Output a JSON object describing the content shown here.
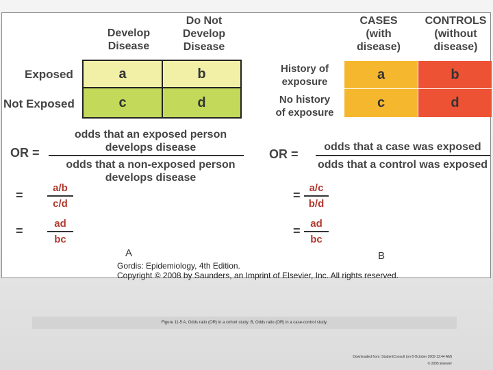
{
  "panel_a": {
    "col1": "Develop\nDisease",
    "col2": "Do Not\nDevelop\nDisease",
    "row1": "Exposed",
    "row2": "Not Exposed",
    "cells": [
      "a",
      "b",
      "c",
      "d"
    ],
    "or_label": "OR  =",
    "numerator": "odds that an exposed person\ndevelops disease",
    "denominator": "odds that a non-exposed person\ndevelops disease",
    "eq_sign_1": "=",
    "frac1_num": "a/b",
    "frac1_den": "c/d",
    "eq_sign_2": "=",
    "frac2_num": "ad",
    "frac2_den": "bc",
    "letter": "A"
  },
  "panel_b": {
    "col1": "CASES\n(with\ndisease)",
    "col2": "CONTROLS\n(without\ndisease)",
    "row1": "History of\nexposure",
    "row2": "No history\nof exposure",
    "cells": [
      "a",
      "b",
      "c",
      "d"
    ],
    "or_label": "OR  =",
    "numerator": "odds that a case was exposed",
    "denominator": "odds that a control was exposed",
    "eq_sign_1": "=",
    "frac1_num": "a/c",
    "frac1_den": "b/d",
    "eq_sign_2": "=",
    "frac2_num": "ad",
    "frac2_den": "bc",
    "letter": "B"
  },
  "credit_line1": "Gordis: Epidemiology, 4th Edition.",
  "credit_line2": "Copyright © 2008 by Saunders, an Imprint of Elsevier, Inc. All rights reserved.",
  "caption": "Figure 11-5 A, Odds ratio (OR) in a cohort study. B, Odds ratio (OR) in a case-control study.",
  "footer_line1": "Downloaded from: StudentConsult (on 8 October 2009 12:44 AM)",
  "footer_line2": "© 2005 Elsevier",
  "colors": {
    "a_light": "#f2f0a6",
    "a_green": "#c3d95a",
    "b_orange": "#f5b72e",
    "b_red": "#ec5233",
    "fraction_red": "#b03a2e"
  }
}
